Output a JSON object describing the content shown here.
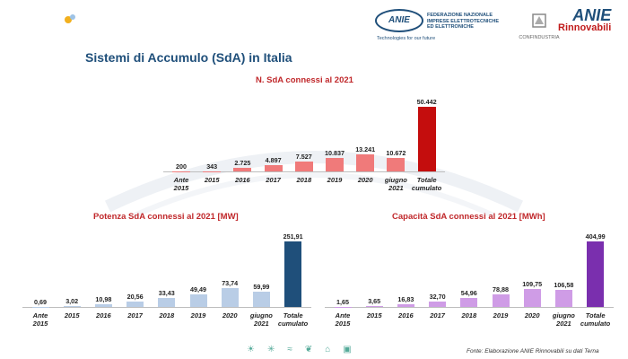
{
  "header": {
    "title": "Sistemi di Accumulo (SdA)  in Italia",
    "anie_logo_text": "ANIE",
    "anie_subtext": "FEDERAZIONE",
    "anie_federation_lines": [
      "FEDERAZIONE NAZIONALE",
      "IMPRESE ELETTROTECNICHE",
      "ED ELETTRONICHE"
    ],
    "anie_tagline": "Technologies for our future",
    "confindustria_label": "CONFINDUSTRIA",
    "brand_top": "ANIE",
    "brand_bottom": "Rinnovabili"
  },
  "source_note": "Fonte: Elaborazione ANIE Rinnovabili su dati Terna",
  "colors": {
    "title_blue": "#1f4f7a",
    "chart_title_red": "#c0282b",
    "bar_red_light": "#f07a7a",
    "bar_red_dark": "#c40d0d",
    "bar_blue_light": "#b9cde6",
    "bar_blue_dark": "#1f4f7a",
    "bar_purple_light": "#cf9ce6",
    "bar_purple_dark": "#7a2fae"
  },
  "chart_data": [
    {
      "type": "bar",
      "title": "N. SdA connessi al 2021",
      "categories": [
        "Ante\n2015",
        "2015",
        "2016",
        "2017",
        "2018",
        "2019",
        "2020",
        "giugno\n2021",
        "Totale\ncumulato"
      ],
      "values": [
        200,
        343,
        2725,
        4897,
        7527,
        10837,
        13241,
        10672,
        50442
      ],
      "value_labels": [
        "200",
        "343",
        "2.725",
        "4.897",
        "7.527",
        "10.837",
        "13.241",
        "10.672",
        "50.442"
      ],
      "ylim": [
        0,
        50442
      ]
    },
    {
      "type": "bar",
      "title": "Potenza SdA connessi al 2021 [MW]",
      "categories": [
        "Ante\n2015",
        "2015",
        "2016",
        "2017",
        "2018",
        "2019",
        "2020",
        "giugno\n2021",
        "Totale\ncumulato"
      ],
      "values": [
        0.69,
        3.02,
        10.98,
        20.56,
        33.43,
        49.49,
        73.74,
        59.99,
        251.91
      ],
      "value_labels": [
        "0,69",
        "3,02",
        "10,98",
        "20,56",
        "33,43",
        "49,49",
        "73,74",
        "59,99",
        "251,91"
      ],
      "ylim": [
        0,
        251.91
      ]
    },
    {
      "type": "bar",
      "title": "Capacità SdA connessi al 2021 [MWh]",
      "categories": [
        "Ante\n2015",
        "2015",
        "2016",
        "2017",
        "2018",
        "2019",
        "2020",
        "giugno\n2021",
        "Totale\ncumulato"
      ],
      "values": [
        1.65,
        3.65,
        16.83,
        32.7,
        54.96,
        78.88,
        109.75,
        106.58,
        404.99
      ],
      "value_labels": [
        "1,65",
        "3,65",
        "16,83",
        "32,70",
        "54,96",
        "78,88",
        "109,75",
        "106,58",
        "404,99"
      ],
      "ylim": [
        0,
        404.99
      ]
    }
  ]
}
